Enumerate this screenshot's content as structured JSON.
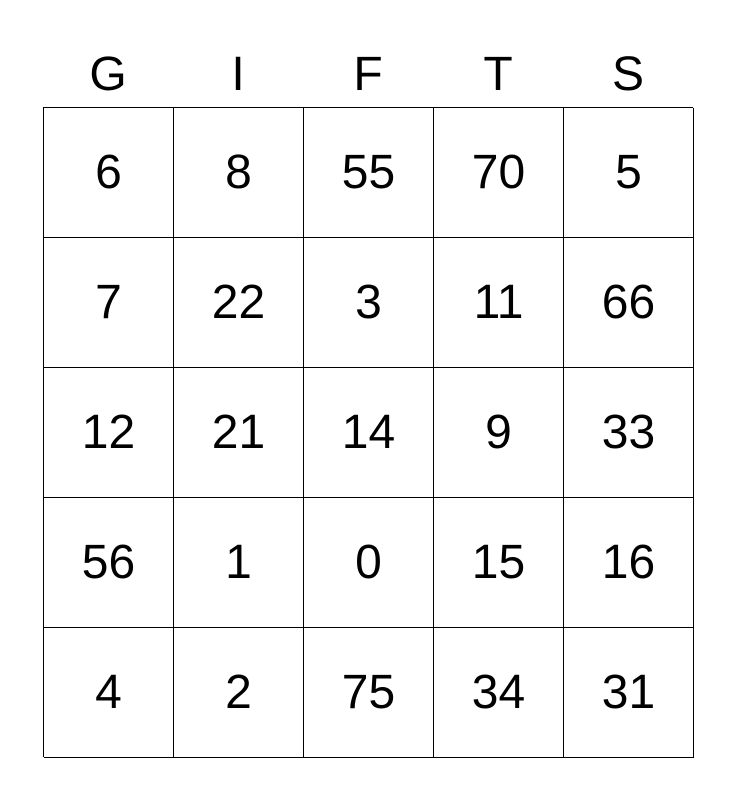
{
  "header": [
    "G",
    "I",
    "F",
    "T",
    "S"
  ],
  "rows": [
    [
      "6",
      "8",
      "55",
      "70",
      "5"
    ],
    [
      "7",
      "22",
      "3",
      "11",
      "66"
    ],
    [
      "12",
      "21",
      "14",
      "9",
      "33"
    ],
    [
      "56",
      "1",
      "0",
      "15",
      "16"
    ],
    [
      "4",
      "2",
      "75",
      "34",
      "31"
    ]
  ]
}
